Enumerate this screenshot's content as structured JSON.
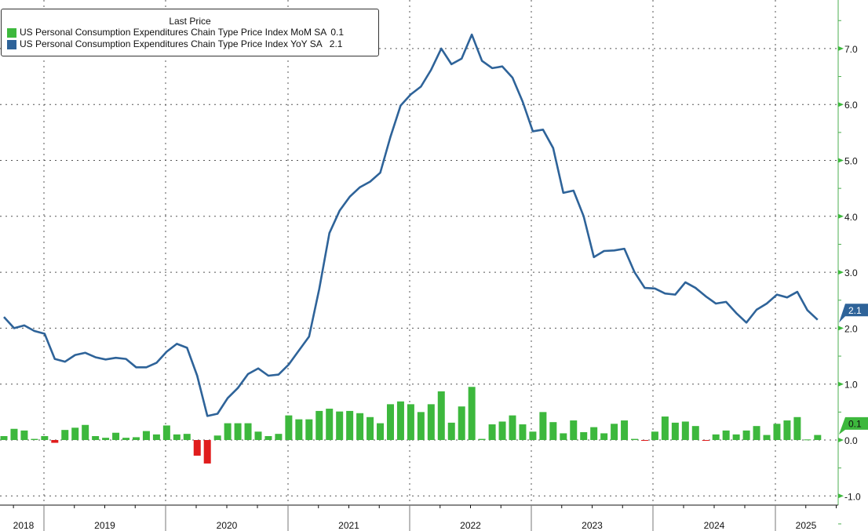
{
  "chart_data": {
    "type": "bar+line",
    "legend_title": "Last Price",
    "legend_placement": "top-left",
    "series": [
      {
        "name": "US Personal Consumption Expenditures Chain Type Price Index MoM SA",
        "type": "bar",
        "last": "0.1",
        "color": "#3db83d",
        "negative_color": "#e01c1c",
        "values": [
          0.07,
          0.2,
          0.17,
          0.02,
          0.07,
          -0.05,
          0.18,
          0.22,
          0.27,
          0.07,
          0.04,
          0.13,
          0.04,
          0.05,
          0.16,
          0.1,
          0.26,
          0.1,
          0.11,
          -0.28,
          -0.42,
          0.08,
          0.3,
          0.3,
          0.3,
          0.15,
          0.07,
          0.11,
          0.44,
          0.37,
          0.37,
          0.52,
          0.56,
          0.51,
          0.52,
          0.48,
          0.41,
          0.3,
          0.64,
          0.69,
          0.64,
          0.5,
          0.64,
          0.87,
          0.31,
          0.6,
          0.95,
          0.02,
          0.28,
          0.33,
          0.44,
          0.28,
          0.15,
          0.5,
          0.32,
          0.12,
          0.35,
          0.14,
          0.23,
          0.12,
          0.29,
          0.35,
          0.02,
          -0.01,
          0.15,
          0.42,
          0.31,
          0.33,
          0.25,
          -0.01,
          0.1,
          0.17,
          0.1,
          0.17,
          0.25,
          0.09,
          0.29,
          0.35,
          0.41,
          0.01,
          0.09
        ]
      },
      {
        "name": "US Personal Consumption Expenditures Chain Type Price Index YoY SA",
        "type": "line",
        "last": "2.1",
        "color": "#2e6399",
        "values": [
          2.2,
          2.0,
          2.05,
          1.95,
          1.9,
          1.45,
          1.4,
          1.52,
          1.56,
          1.48,
          1.44,
          1.47,
          1.45,
          1.3,
          1.3,
          1.38,
          1.58,
          1.72,
          1.65,
          1.15,
          0.43,
          0.47,
          0.75,
          0.93,
          1.18,
          1.28,
          1.15,
          1.17,
          1.35,
          1.6,
          1.85,
          2.7,
          3.7,
          4.1,
          4.35,
          4.52,
          4.62,
          4.78,
          5.42,
          5.98,
          6.18,
          6.32,
          6.62,
          7.0,
          6.72,
          6.82,
          7.25,
          6.78,
          6.65,
          6.68,
          6.48,
          6.05,
          5.52,
          5.55,
          5.22,
          4.42,
          4.46,
          4.0,
          3.27,
          3.38,
          3.39,
          3.42,
          3.0,
          2.72,
          2.71,
          2.62,
          2.6,
          2.82,
          2.72,
          2.57,
          2.44,
          2.47,
          2.27,
          2.1,
          2.33,
          2.44,
          2.6,
          2.55,
          2.65,
          2.32,
          2.15
        ]
      }
    ],
    "x_start": "2018-08",
    "x_frequency": "monthly",
    "x_tick_labels": [
      "2018",
      "2019",
      "2020",
      "2021",
      "2022",
      "2023",
      "2024",
      "2025"
    ],
    "y_tick_labels": [
      "7.0",
      "6.0",
      "5.0",
      "4.0",
      "3.0",
      "2.0",
      "1.0",
      "0.0",
      "-1.0"
    ],
    "ylim": [
      -1.4,
      8.0
    ],
    "grid": true,
    "title": "",
    "xlabel": "",
    "ylabel": ""
  }
}
